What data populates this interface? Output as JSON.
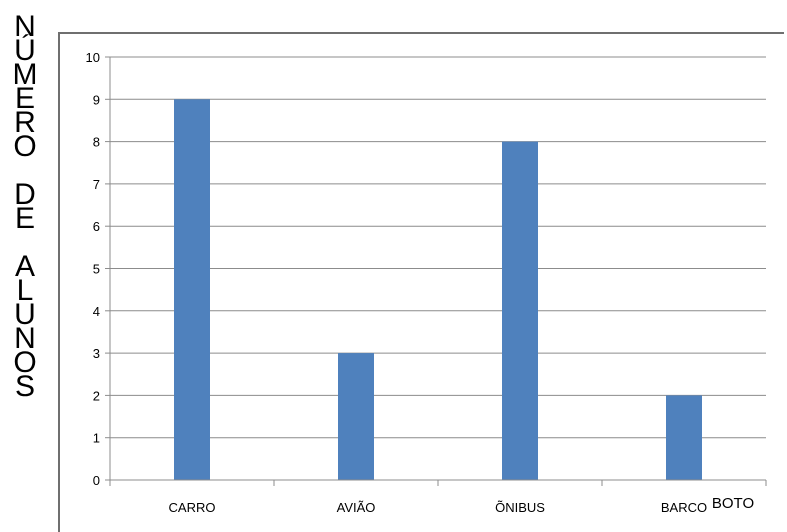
{
  "chart_data": {
    "type": "bar",
    "ylabel": "NÚMERO DE ALUNOS",
    "xlabel": "",
    "categories": [
      "CARRO",
      "AVIÃO",
      "ÕNIBUS",
      "BARCO"
    ],
    "values": [
      9,
      3,
      8,
      2
    ],
    "ylim": [
      0,
      10
    ],
    "yticks": [
      0,
      1,
      2,
      3,
      4,
      5,
      6,
      7,
      8,
      9,
      10
    ],
    "grid": true,
    "legend": "none",
    "annotations": [
      "BOTO"
    ],
    "colors": {
      "bar": "#4f81bd",
      "grid": "#8c8c8c",
      "axis": "#8c8c8c"
    }
  }
}
